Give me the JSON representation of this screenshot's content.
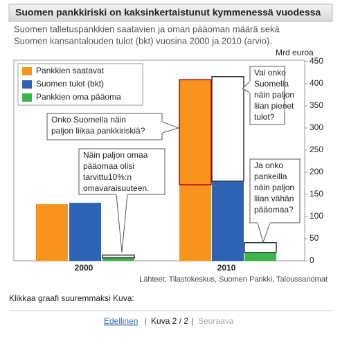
{
  "chart_data": {
    "type": "bar",
    "title": "Suomen pankkiriski on kaksinkertaistunut kymmenessä vuodessa",
    "subtitle": [
      "Suomen talletuspankkien saatavien ja oman pääoman määrä sekä",
      "Suomen kansantalouden tulot (bkt) vuosina 2000 ja 2010 (arvio)."
    ],
    "y_label": "Mrd euroa",
    "categories": [
      "2000",
      "2010"
    ],
    "series": [
      {
        "name": "Pankkien saatavat",
        "color": "#f7941d",
        "values": [
          128,
          409
        ]
      },
      {
        "name": "Suomen tulot (bkt)",
        "color": "#2e62b5",
        "values": [
          131,
          180
        ]
      },
      {
        "name": "Pankkien oma pääoma",
        "color": "#3cb54a",
        "values": [
          7,
          19
        ]
      }
    ],
    "outlines": [
      {
        "series": 0,
        "category": 1,
        "from": 172,
        "to": 409,
        "color": "#c00000"
      },
      {
        "series": 1,
        "category": 1,
        "from": 180,
        "to": 416,
        "color": "#333333"
      },
      {
        "series": 2,
        "category": 0,
        "from": 7,
        "to": 13,
        "color": "#333333"
      },
      {
        "series": 2,
        "category": 1,
        "from": 19,
        "to": 41,
        "color": "#333333"
      }
    ],
    "ylim": [
      0,
      450
    ],
    "yticks": [
      0,
      50,
      100,
      150,
      200,
      250,
      300,
      350,
      400,
      450
    ],
    "legend": "top-left",
    "annotations": [
      {
        "lines": [
          "Onko Suomella näin",
          "paljon liikaa pankkiriskiä?"
        ]
      },
      {
        "lines": [
          "Näin paljon omaa",
          "pääomaa olisi",
          "tarvittu10%:n",
          "omavaraisuuteen."
        ]
      },
      {
        "lines": [
          "Vai onko",
          "Suomella",
          "näin paljon",
          "liian pienet",
          "tulot?"
        ]
      },
      {
        "lines": [
          "Ja onko",
          "pankeilla",
          "näin paljon",
          "liian vähän",
          "pääomaa?"
        ]
      }
    ],
    "source": "Lähteet: Tilastokeskus, Suomen Pankki, Taloussanomat"
  },
  "footer": {
    "caption": "Klikkaa graafi suuremmaksi Kuva:",
    "prev": "Edellinen",
    "counter": "Kuva 2 / 2",
    "next": "Seuraava"
  }
}
